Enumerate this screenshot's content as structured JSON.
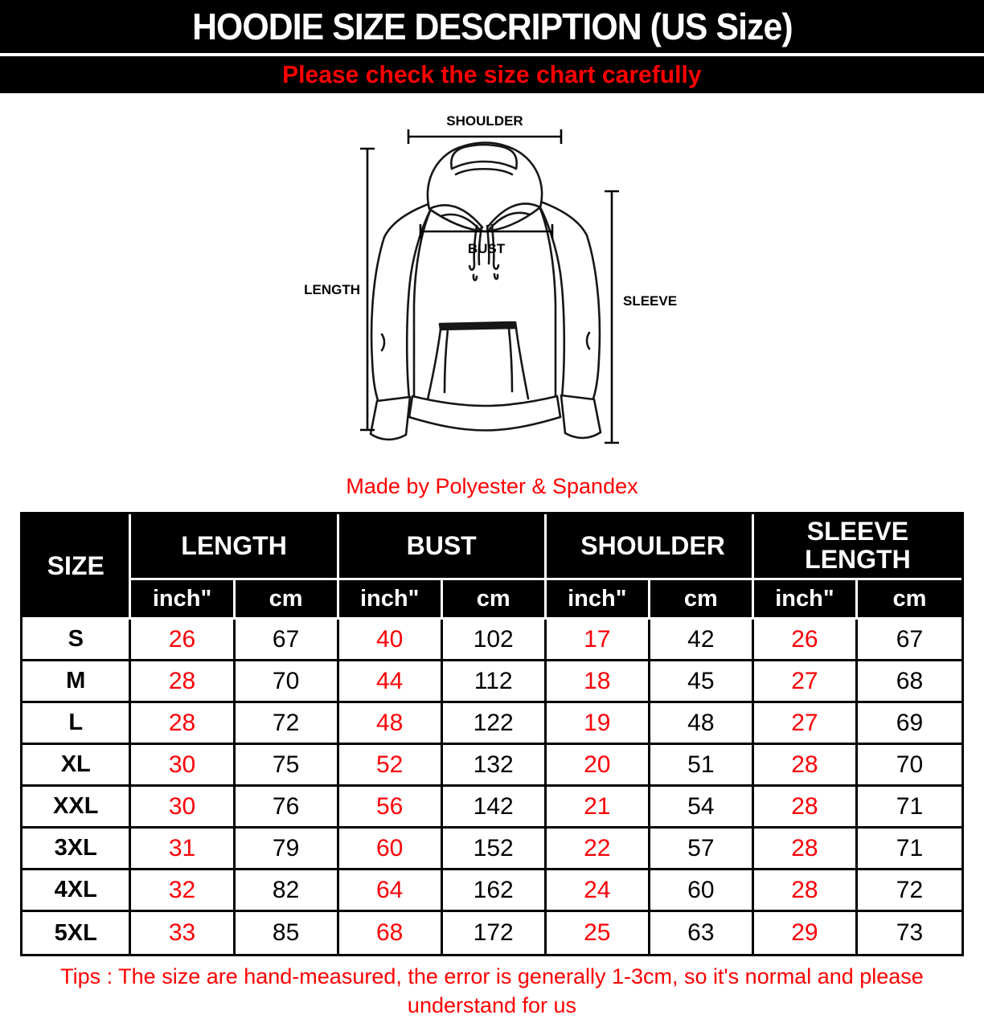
{
  "banner": {
    "title": "HOODIE SIZE DESCRIPTION (US Size)",
    "subtitle": "Please check the size chart carefully"
  },
  "diagram": {
    "shoulder_label": "SHOULDER",
    "length_label": "LENGTH",
    "sleeve_label": "SLEEVE",
    "bust_label": "BUST",
    "caption": "Made by Polyester & Spandex"
  },
  "size_table": {
    "size_header": "SIZE",
    "groups": [
      {
        "label": "LENGTH"
      },
      {
        "label": "BUST"
      },
      {
        "label": "SHOULDER"
      },
      {
        "label": "SLEEVE LENGTH"
      }
    ],
    "unit_inch": "inch\"",
    "unit_cm": "cm",
    "rows": [
      {
        "size": "S",
        "values": [
          "26",
          "67",
          "40",
          "102",
          "17",
          "42",
          "26",
          "67"
        ]
      },
      {
        "size": "M",
        "values": [
          "28",
          "70",
          "44",
          "112",
          "18",
          "45",
          "27",
          "68"
        ]
      },
      {
        "size": "L",
        "values": [
          "28",
          "72",
          "48",
          "122",
          "19",
          "48",
          "27",
          "69"
        ]
      },
      {
        "size": "XL",
        "values": [
          "30",
          "75",
          "52",
          "132",
          "20",
          "51",
          "28",
          "70"
        ]
      },
      {
        "size": "XXL",
        "values": [
          "30",
          "76",
          "56",
          "142",
          "21",
          "54",
          "28",
          "71"
        ]
      },
      {
        "size": "3XL",
        "values": [
          "31",
          "79",
          "60",
          "152",
          "22",
          "57",
          "28",
          "71"
        ]
      },
      {
        "size": "4XL",
        "values": [
          "32",
          "82",
          "64",
          "162",
          "24",
          "60",
          "28",
          "72"
        ]
      },
      {
        "size": "5XL",
        "values": [
          "33",
          "85",
          "68",
          "172",
          "25",
          "63",
          "29",
          "73"
        ]
      }
    ]
  },
  "tips": {
    "line1": "Tips : The size are hand-measured, the error is generally 1-3cm, so it's normal and please",
    "line2": "understand for us"
  },
  "colors": {
    "banner_bg": "#000000",
    "accent_red": "#ff0000",
    "value_red": "#fb0006"
  }
}
